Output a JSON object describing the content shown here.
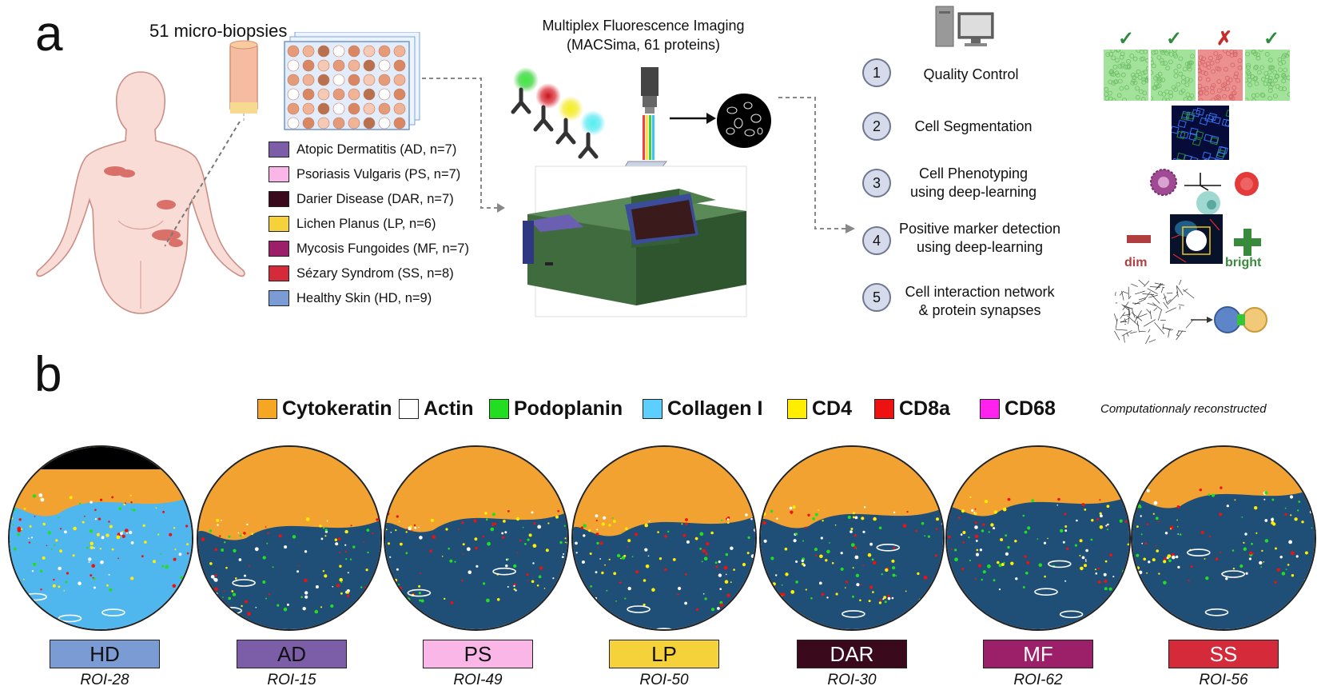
{
  "panel_a": {
    "letter": "a",
    "biopsies_label": "51 micro-biopsies",
    "legend": [
      {
        "label": "Atopic Dermatitis (AD, n=7)",
        "color": "#7b5ea7"
      },
      {
        "label": "Psoriasis Vulgaris (PS, n=7)",
        "color": "#f9b6e6"
      },
      {
        "label": "Darier Disease (DAR, n=7)",
        "color": "#3a0a1c"
      },
      {
        "label": "Lichen Planus (LP, n=6)",
        "color": "#f6d23a"
      },
      {
        "label": "Mycosis Fungoides (MF, n=7)",
        "color": "#9c2069"
      },
      {
        "label": "Sézary Syndrom (SS, n=8)",
        "color": "#d42a3a"
      },
      {
        "label": "Healthy Skin (HD, n=9)",
        "color": "#7b9bd4"
      }
    ],
    "imaging_title_1": "Multiplex Fluorescence Imaging",
    "imaging_title_2": "(MACSima, 61 proteins)",
    "steps": [
      {
        "num": "1",
        "label_1": "Quality Control",
        "label_2": ""
      },
      {
        "num": "2",
        "label_1": "Cell Segmentation",
        "label_2": ""
      },
      {
        "num": "3",
        "label_1": "Cell Phenotyping",
        "label_2": "using deep-learning"
      },
      {
        "num": "4",
        "label_1": "Positive marker detection",
        "label_2": "using deep-learning"
      },
      {
        "num": "5",
        "label_1": "Cell interaction network",
        "label_2": "& protein synapses"
      }
    ],
    "dim_label": "dim",
    "bright_label": "bright",
    "qc_marks": [
      "✓",
      "✓",
      "✗",
      "✓"
    ]
  },
  "panel_b": {
    "letter": "b",
    "markers": [
      {
        "label": "Cytokeratin",
        "color": "#f5a623"
      },
      {
        "label": "Actin",
        "color": "#ffffff"
      },
      {
        "label": "Podoplanin",
        "color": "#22dd22"
      },
      {
        "label": "Collagen I",
        "color": "#5ccfff"
      },
      {
        "label": "CD4",
        "color": "#ffee00"
      },
      {
        "label": "CD8a",
        "color": "#ee1111"
      },
      {
        "label": "CD68",
        "color": "#ff22ee"
      }
    ],
    "note": "Computationnaly reconstructed",
    "rois": [
      {
        "label": "HD",
        "id": "ROI-28",
        "color": "#7b9bd4"
      },
      {
        "label": "AD",
        "id": "ROI-15",
        "color": "#7b5ea7"
      },
      {
        "label": "PS",
        "id": "ROI-49",
        "color": "#f9b6e6"
      },
      {
        "label": "LP",
        "id": "ROI-50",
        "color": "#f6d23a"
      },
      {
        "label": "DAR",
        "id": "ROI-30",
        "color": "#3a0a1c"
      },
      {
        "label": "MF",
        "id": "ROI-62",
        "color": "#9c2069"
      },
      {
        "label": "SS",
        "id": "ROI-56",
        "color": "#d42a3a"
      }
    ]
  }
}
